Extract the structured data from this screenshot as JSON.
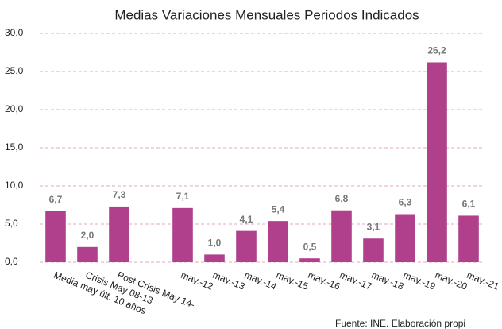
{
  "chart_data": {
    "type": "bar",
    "title": "Medias Variaciones Mensuales  Periodos Indicados",
    "source": "Fuente: INE. Elaboración propi",
    "categories": [
      "Media may últ. 10 años",
      "Crisis May 08-13",
      "Post Crisis May 14-",
      null,
      "may.-12",
      "may.-13",
      "may.-14",
      "may.-15",
      "may.-16",
      "may.-17",
      "may.-18",
      "may.-19",
      "may.-20",
      "may.-21"
    ],
    "values": [
      6.7,
      2.0,
      7.3,
      null,
      7.1,
      1.0,
      4.1,
      5.4,
      0.5,
      6.8,
      3.1,
      6.3,
      26.2,
      6.1
    ],
    "value_labels": [
      "6,7",
      "2,0",
      "7,3",
      null,
      "7,1",
      "1,0",
      "4,1",
      "5,4",
      "0,5",
      "6,8",
      "3,1",
      "6,3",
      "26,2",
      "6,1"
    ],
    "color": "#b0408c",
    "ylim": [
      0,
      30
    ],
    "yticks": [
      {
        "value": 0,
        "label": "0,0"
      },
      {
        "value": 5,
        "label": "5,0"
      },
      {
        "value": 10,
        "label": "10,0"
      },
      {
        "value": 15,
        "label": "15,0"
      },
      {
        "value": 20,
        "label": "20,0"
      },
      {
        "value": 25,
        "label": "25,0"
      },
      {
        "value": 30,
        "label": "30,0"
      }
    ],
    "grid": true
  }
}
